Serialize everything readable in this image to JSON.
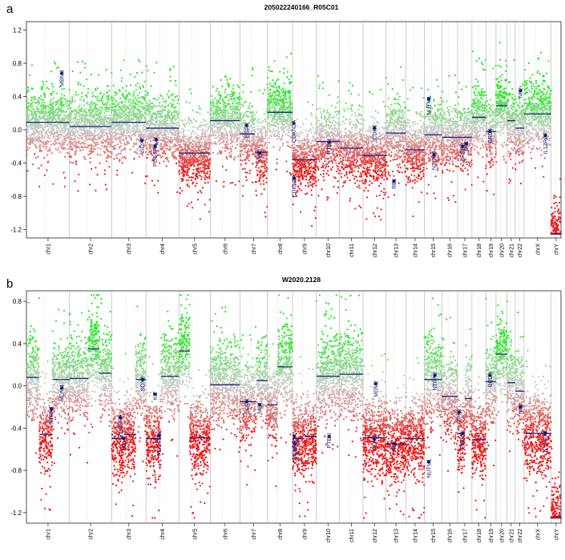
{
  "panels": [
    {
      "letter": "a",
      "title": "205022240166_R05C01"
    },
    {
      "letter": "b",
      "title": "W2020.2128"
    }
  ],
  "chart_data": [
    {
      "type": "scatter",
      "subtype": "copy-number-segments",
      "panel": "a",
      "title": "205022240166_R05C01",
      "ylim": [
        -1.3,
        1.3
      ],
      "yticks": [
        -1.2,
        -0.8,
        -0.4,
        0.0,
        0.4,
        0.8,
        1.2
      ],
      "ytick_labels": [
        "-1.2",
        "-0.8",
        "-0.4",
        "0.0",
        "0.4",
        "0.8",
        "1.2"
      ],
      "xlabel": "",
      "ylabel": "",
      "chromosomes": [
        "chr1",
        "chr2",
        "chr3",
        "chr4",
        "chr5",
        "chr6",
        "chr7",
        "chr8",
        "chr9",
        "chr10",
        "chr11",
        "chr12",
        "chr13",
        "chr14",
        "chr15",
        "chr16",
        "chr17",
        "chr18",
        "chr19",
        "chr20",
        "chr21",
        "chr22",
        "chrX",
        "chrY"
      ],
      "chrom_sizes": [
        249,
        243,
        198,
        190,
        181,
        171,
        159,
        145,
        138,
        134,
        135,
        133,
        114,
        107,
        102,
        90,
        83,
        80,
        59,
        64,
        47,
        51,
        156,
        57
      ],
      "segments": [
        {
          "chrom": 1,
          "start": 0.0,
          "end": 1.0,
          "value": 0.09
        },
        {
          "chrom": 2,
          "start": 0.0,
          "end": 1.0,
          "value": 0.04
        },
        {
          "chrom": 3,
          "start": 0.0,
          "end": 1.0,
          "value": 0.09
        },
        {
          "chrom": 4,
          "start": 0.0,
          "end": 1.0,
          "value": 0.02
        },
        {
          "chrom": 5,
          "start": 0.0,
          "end": 1.0,
          "value": -0.28
        },
        {
          "chrom": 6,
          "start": 0.0,
          "end": 1.0,
          "value": 0.11
        },
        {
          "chrom": 7,
          "start": 0.0,
          "end": 0.55,
          "value": -0.05
        },
        {
          "chrom": 7,
          "start": 0.55,
          "end": 1.0,
          "value": -0.27
        },
        {
          "chrom": 8,
          "start": 0.0,
          "end": 1.0,
          "value": 0.21
        },
        {
          "chrom": 9,
          "start": 0.0,
          "end": 1.0,
          "value": -0.36
        },
        {
          "chrom": 10,
          "start": 0.0,
          "end": 1.0,
          "value": -0.14
        },
        {
          "chrom": 11,
          "start": 0.0,
          "end": 1.0,
          "value": -0.22
        },
        {
          "chrom": 12,
          "start": 0.0,
          "end": 1.0,
          "value": -0.31
        },
        {
          "chrom": 13,
          "start": 0.0,
          "end": 1.0,
          "value": -0.04
        },
        {
          "chrom": 14,
          "start": 0.0,
          "end": 1.0,
          "value": -0.24
        },
        {
          "chrom": 15,
          "start": 0.0,
          "end": 1.0,
          "value": -0.06
        },
        {
          "chrom": 16,
          "start": 0.0,
          "end": 1.0,
          "value": -0.09
        },
        {
          "chrom": 17,
          "start": 0.0,
          "end": 1.0,
          "value": -0.09
        },
        {
          "chrom": 18,
          "start": 0.0,
          "end": 1.0,
          "value": 0.15
        },
        {
          "chrom": 19,
          "start": 0.0,
          "end": 1.0,
          "value": -0.02
        },
        {
          "chrom": 20,
          "start": 0.0,
          "end": 1.0,
          "value": 0.29
        },
        {
          "chrom": 21,
          "start": 0.0,
          "end": 1.0,
          "value": 0.11
        },
        {
          "chrom": 22,
          "start": 0.0,
          "end": 1.0,
          "value": 0.02
        },
        {
          "chrom": 23,
          "start": 0.0,
          "end": 1.0,
          "value": 0.19
        },
        {
          "chrom": 24,
          "start": 0.0,
          "end": 1.0,
          "value": -1.25
        }
      ],
      "genes": [
        {
          "name": "MDM4",
          "chrom": 1,
          "pos": 0.82,
          "value": 0.68
        },
        {
          "name": "SOX2",
          "chrom": 3,
          "pos": 0.88,
          "value": -0.13
        },
        {
          "name": "PDGFRA",
          "chrom": 4,
          "pos": 0.28,
          "value": -0.2
        },
        {
          "name": "KIT",
          "chrom": 4,
          "pos": 0.31,
          "value": -0.12
        },
        {
          "name": "EGFR",
          "chrom": 7,
          "pos": 0.25,
          "value": 0.05
        },
        {
          "name": "MET",
          "chrom": 7,
          "pos": 0.72,
          "value": -0.28
        },
        {
          "name": "CDKN2A",
          "chrom": 9,
          "pos": 0.05,
          "value": 0.08
        },
        {
          "name": "CDKN2B",
          "chrom": 9,
          "pos": 0.07,
          "value": -0.58
        },
        {
          "name": "PTEN",
          "chrom": 10,
          "pos": 0.55,
          "value": -0.15
        },
        {
          "name": "CDK4",
          "chrom": 12,
          "pos": 0.5,
          "value": 0.02
        },
        {
          "name": "RB1",
          "chrom": 13,
          "pos": 0.4,
          "value": -0.62
        },
        {
          "name": "NUTM1",
          "chrom": 15,
          "pos": 0.25,
          "value": 0.37
        },
        {
          "name": "NTRK3",
          "chrom": 15,
          "pos": 0.55,
          "value": -0.3
        },
        {
          "name": "ERBB2",
          "chrom": 17,
          "pos": 0.35,
          "value": -0.2
        },
        {
          "name": "NF1",
          "chrom": 17,
          "pos": 0.6,
          "value": -0.17
        },
        {
          "name": "BRD4",
          "chrom": 19,
          "pos": 0.4,
          "value": -0.02
        },
        {
          "name": "NF2",
          "chrom": 22,
          "pos": 0.6,
          "value": 0.47
        },
        {
          "name": "IL13RA2",
          "chrom": 23,
          "pos": 0.78,
          "value": -0.07
        }
      ]
    },
    {
      "type": "scatter",
      "subtype": "copy-number-segments",
      "panel": "b",
      "title": "W2020.2128",
      "ylim": [
        -1.3,
        0.9
      ],
      "yticks": [
        -1.2,
        -0.8,
        -0.4,
        0.0,
        0.4,
        0.8
      ],
      "ytick_labels": [
        "-1.2",
        "-0.8",
        "-0.4",
        "0.0",
        "0.4",
        "0.8"
      ],
      "xlabel": "",
      "ylabel": "",
      "chromosomes": [
        "chr1",
        "chr2",
        "chr3",
        "chr4",
        "chr5",
        "chr6",
        "chr7",
        "chr8",
        "chr9",
        "chr10",
        "chr11",
        "chr12",
        "chr13",
        "chr14",
        "chr15",
        "chr16",
        "chr17",
        "chr18",
        "chr19",
        "chr20",
        "chr21",
        "chr22",
        "chrX",
        "chrY"
      ],
      "chrom_sizes": [
        249,
        243,
        198,
        190,
        181,
        171,
        159,
        145,
        138,
        134,
        135,
        133,
        114,
        107,
        102,
        90,
        83,
        80,
        59,
        64,
        47,
        51,
        156,
        57
      ],
      "segments": [
        {
          "chrom": 1,
          "start": 0.0,
          "end": 0.3,
          "value": 0.08
        },
        {
          "chrom": 1,
          "start": 0.3,
          "end": 0.6,
          "value": -0.46
        },
        {
          "chrom": 1,
          "start": 0.6,
          "end": 1.0,
          "value": 0.06
        },
        {
          "chrom": 2,
          "start": 0.0,
          "end": 0.45,
          "value": 0.07
        },
        {
          "chrom": 2,
          "start": 0.45,
          "end": 0.7,
          "value": 0.35
        },
        {
          "chrom": 2,
          "start": 0.7,
          "end": 1.0,
          "value": 0.12
        },
        {
          "chrom": 3,
          "start": 0.0,
          "end": 0.35,
          "value": -0.5
        },
        {
          "chrom": 3,
          "start": 0.35,
          "end": 0.7,
          "value": -0.46
        },
        {
          "chrom": 3,
          "start": 0.7,
          "end": 1.0,
          "value": 0.06
        },
        {
          "chrom": 4,
          "start": 0.0,
          "end": 0.45,
          "value": -0.5
        },
        {
          "chrom": 4,
          "start": 0.45,
          "end": 1.0,
          "value": 0.09
        },
        {
          "chrom": 5,
          "start": 0.0,
          "end": 0.35,
          "value": 0.33
        },
        {
          "chrom": 5,
          "start": 0.35,
          "end": 1.0,
          "value": -0.49
        },
        {
          "chrom": 6,
          "start": 0.0,
          "end": 1.0,
          "value": 0.01
        },
        {
          "chrom": 7,
          "start": 0.0,
          "end": 0.6,
          "value": -0.15
        },
        {
          "chrom": 7,
          "start": 0.6,
          "end": 1.0,
          "value": 0.05
        },
        {
          "chrom": 8,
          "start": 0.0,
          "end": 0.4,
          "value": -0.18
        },
        {
          "chrom": 8,
          "start": 0.4,
          "end": 1.0,
          "value": 0.18
        },
        {
          "chrom": 9,
          "start": 0.0,
          "end": 0.5,
          "value": -0.5
        },
        {
          "chrom": 9,
          "start": 0.5,
          "end": 1.0,
          "value": -0.48
        },
        {
          "chrom": 10,
          "start": 0.0,
          "end": 1.0,
          "value": 0.09
        },
        {
          "chrom": 11,
          "start": 0.0,
          "end": 1.0,
          "value": 0.11
        },
        {
          "chrom": 12,
          "start": 0.0,
          "end": 1.0,
          "value": -0.49
        },
        {
          "chrom": 13,
          "start": 0.0,
          "end": 1.0,
          "value": -0.55
        },
        {
          "chrom": 14,
          "start": 0.0,
          "end": 1.0,
          "value": -0.5
        },
        {
          "chrom": 15,
          "start": 0.0,
          "end": 1.0,
          "value": 0.06
        },
        {
          "chrom": 16,
          "start": 0.0,
          "end": 1.0,
          "value": -0.1
        },
        {
          "chrom": 17,
          "start": 0.0,
          "end": 0.5,
          "value": -0.45
        },
        {
          "chrom": 17,
          "start": 0.5,
          "end": 1.0,
          "value": -0.12
        },
        {
          "chrom": 18,
          "start": 0.0,
          "end": 1.0,
          "value": -0.51
        },
        {
          "chrom": 19,
          "start": 0.0,
          "end": 1.0,
          "value": 0.04
        },
        {
          "chrom": 20,
          "start": 0.0,
          "end": 1.0,
          "value": 0.3
        },
        {
          "chrom": 21,
          "start": 0.0,
          "end": 1.0,
          "value": 0.03
        },
        {
          "chrom": 22,
          "start": 0.0,
          "end": 1.0,
          "value": -0.05
        },
        {
          "chrom": 23,
          "start": 0.0,
          "end": 1.0,
          "value": -0.45
        },
        {
          "chrom": 24,
          "start": 0.0,
          "end": 1.0,
          "value": -1.24
        }
      ],
      "genes": [
        {
          "name": "NTRK1",
          "chrom": 1,
          "pos": 0.58,
          "value": -0.22
        },
        {
          "name": "MDM4",
          "chrom": 1,
          "pos": 0.82,
          "value": -0.02
        },
        {
          "name": "PDGFRA",
          "chrom": 3,
          "pos": 0.25,
          "value": -0.3
        },
        {
          "name": "MLH1",
          "chrom": 3,
          "pos": 0.35,
          "value": -0.5
        },
        {
          "name": "SOX2",
          "chrom": 3,
          "pos": 0.9,
          "value": 0.06
        },
        {
          "name": "KIT",
          "chrom": 4,
          "pos": 0.28,
          "value": -0.08
        },
        {
          "name": "PDGFRB",
          "chrom": 4,
          "pos": 0.4,
          "value": -0.47
        },
        {
          "name": "EGFR",
          "chrom": 7,
          "pos": 0.25,
          "value": -0.15
        },
        {
          "name": "MET",
          "chrom": 7,
          "pos": 0.72,
          "value": -0.18
        },
        {
          "name": "CDKN2A",
          "chrom": 9,
          "pos": 0.08,
          "value": -0.48
        },
        {
          "name": "CDKN2B",
          "chrom": 9,
          "pos": 0.1,
          "value": -0.55
        },
        {
          "name": "PTEN",
          "chrom": 10,
          "pos": 0.55,
          "value": -0.48
        },
        {
          "name": "MDM2",
          "chrom": 12,
          "pos": 0.55,
          "value": 0.02
        },
        {
          "name": "CDK4",
          "chrom": 12,
          "pos": 0.48,
          "value": -0.5
        },
        {
          "name": "RB1",
          "chrom": 13,
          "pos": 0.4,
          "value": -0.55
        },
        {
          "name": "NUTM1",
          "chrom": 15,
          "pos": 0.25,
          "value": -0.72
        },
        {
          "name": "NTRK3",
          "chrom": 15,
          "pos": 0.6,
          "value": 0.1
        },
        {
          "name": "ERBB2",
          "chrom": 17,
          "pos": 0.35,
          "value": -0.45
        },
        {
          "name": "TP53",
          "chrom": 17,
          "pos": 0.1,
          "value": -0.25
        },
        {
          "name": "BRD4",
          "chrom": 19,
          "pos": 0.4,
          "value": 0.1
        },
        {
          "name": "NF2",
          "chrom": 22,
          "pos": 0.6,
          "value": -0.2
        },
        {
          "name": "IL13RA2",
          "chrom": 23,
          "pos": 0.78,
          "value": -0.45
        }
      ]
    }
  ]
}
